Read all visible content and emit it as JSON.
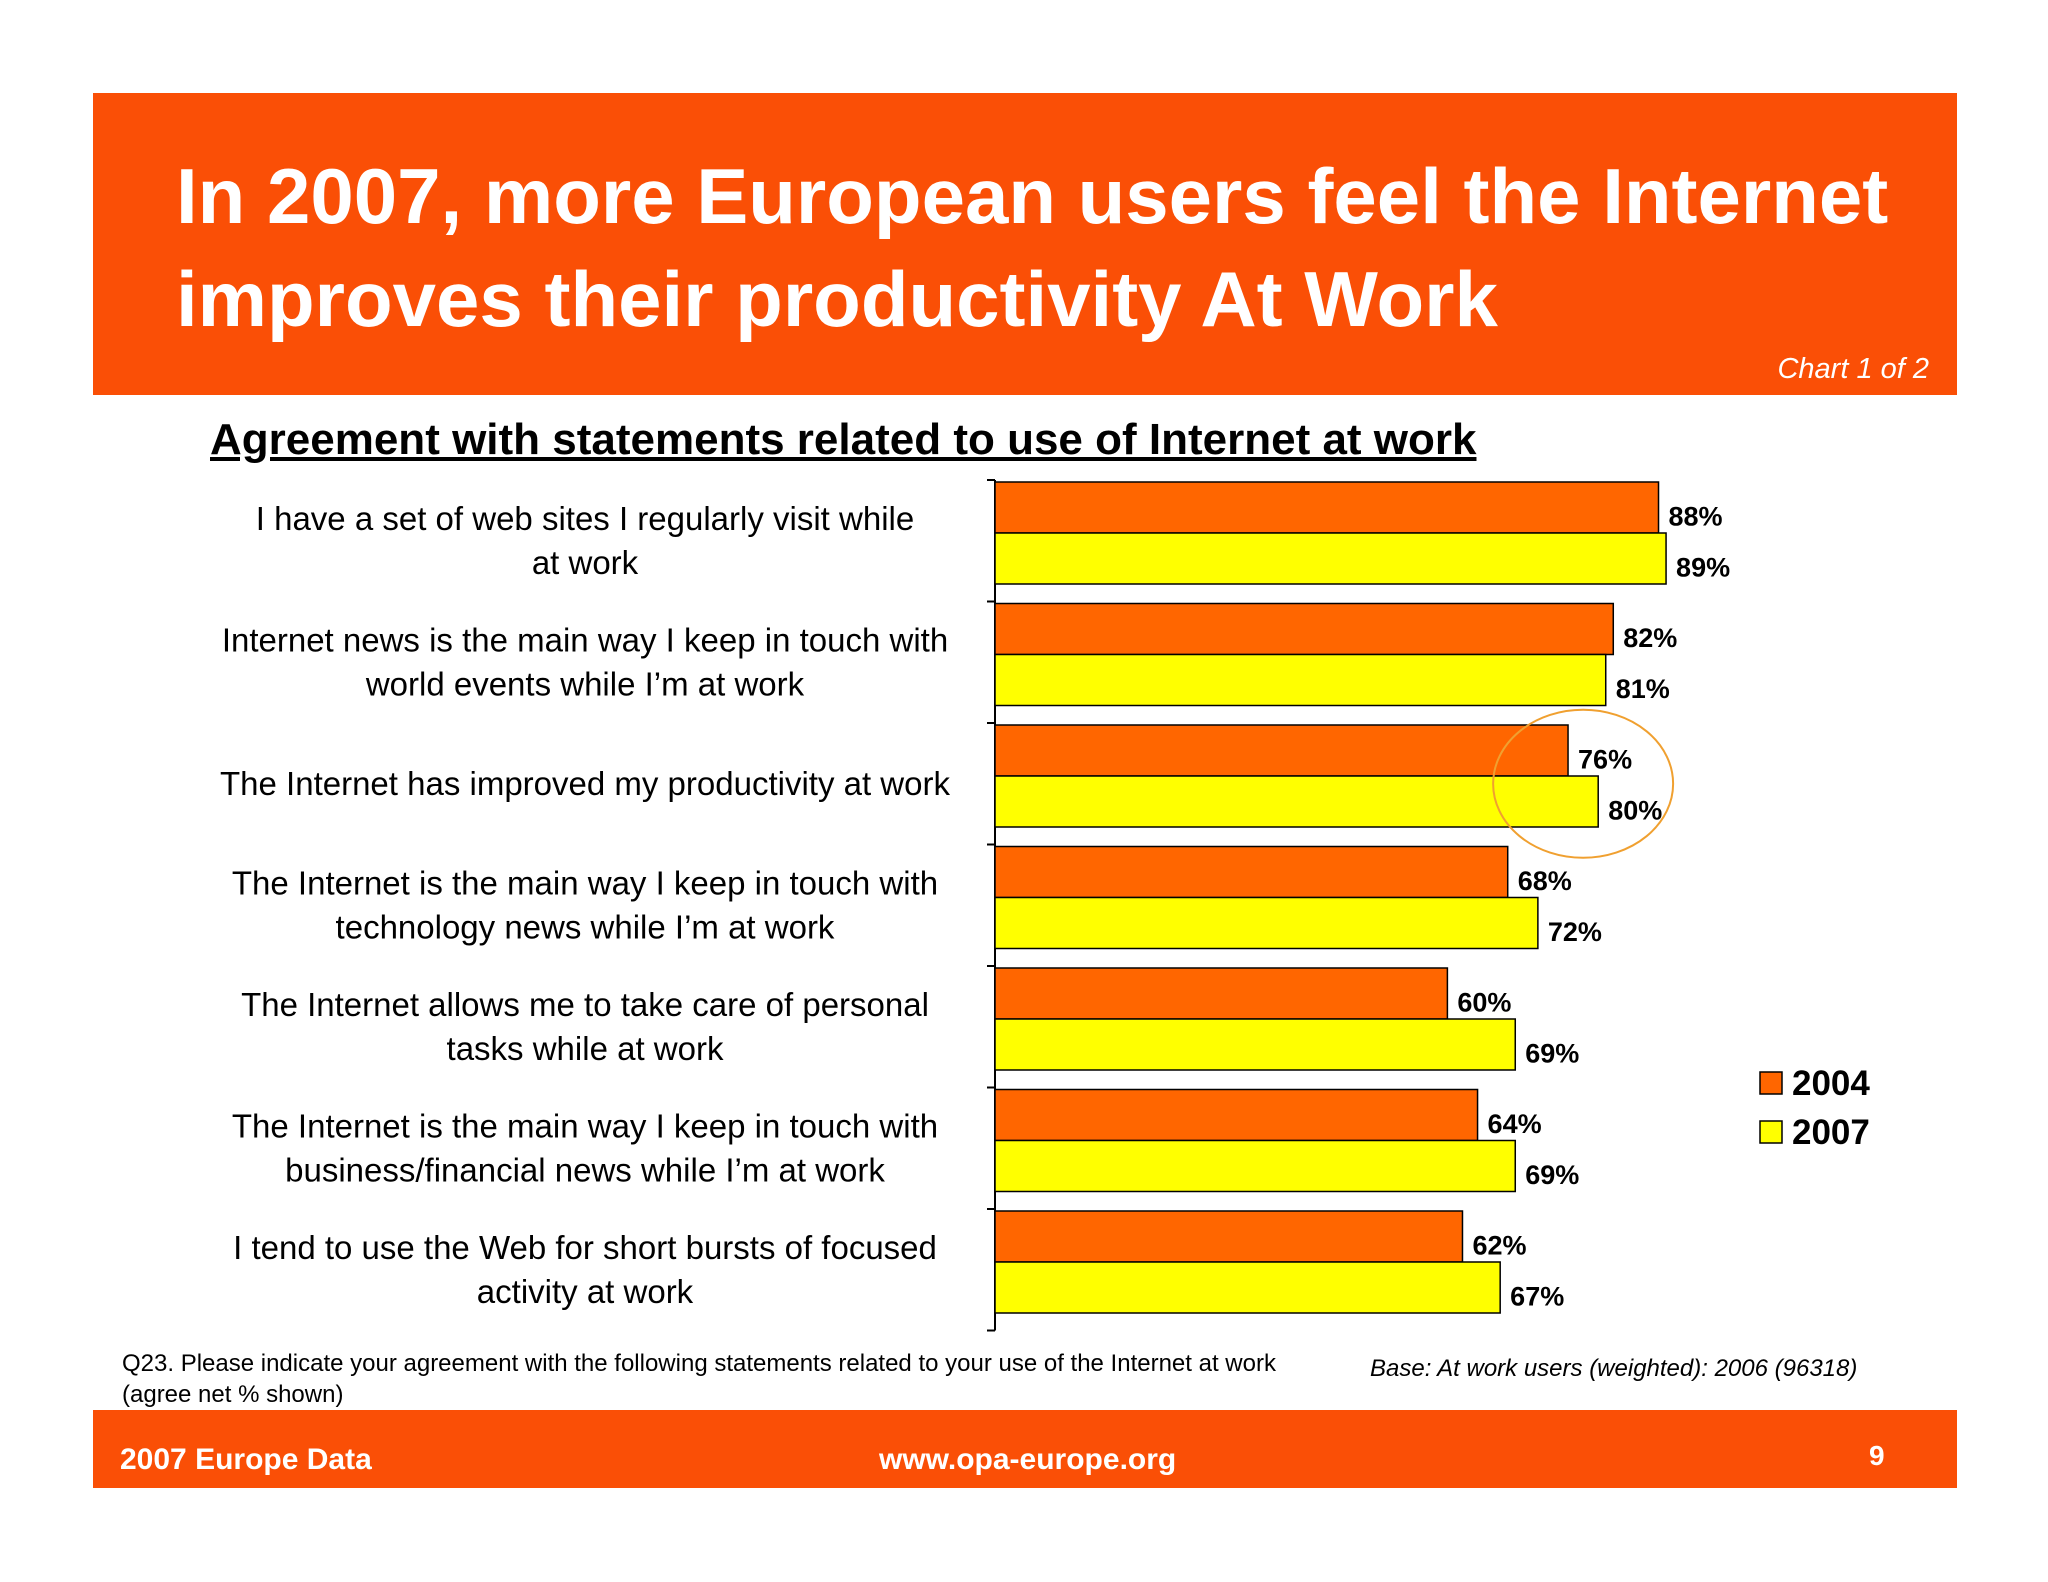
{
  "header": {
    "title": "In 2007, more European users feel the Internet improves their productivity At Work",
    "chart_counter": "Chart 1 of 2"
  },
  "chart_data": {
    "type": "bar",
    "orientation": "horizontal",
    "title": "Agreement with statements related to use of Internet at work",
    "categories": [
      "I have a set of web sites I regularly visit while at work",
      "Internet news is the main way I keep in touch with world events while I’m at work",
      "The Internet has improved my productivity at work",
      "The Internet is the main way I keep in touch with technology news while I’m at work",
      "The Internet allows me to take care of personal tasks while at work",
      "The Internet is the main way I keep in touch with business/financial news while I’m at work",
      "I tend to use the Web for short bursts of focused activity at work"
    ],
    "series": [
      {
        "name": "2004",
        "values": [
          88,
          82,
          76,
          68,
          60,
          64,
          62
        ],
        "color": "#ff6600"
      },
      {
        "name": "2007",
        "values": [
          89,
          81,
          80,
          72,
          69,
          69,
          67
        ],
        "color": "#ffff00"
      }
    ],
    "value_suffix": "%",
    "xlim": [
      0,
      100
    ],
    "legend_position": "right",
    "grid": false,
    "highlight_category": "The Internet has improved my productivity at work",
    "highlight_color": "#f0a030"
  },
  "footnotes": {
    "question": "Q23. Please indicate your agreement with the following statements related to your use of the Internet at work (agree net % shown)",
    "base": "Base: At work users (weighted): 2006 (96318)"
  },
  "footer": {
    "left": "2007 Europe Data",
    "center": "www.opa-europe.org",
    "page_number": "9"
  },
  "colors": {
    "brand_orange": "#fa4f06"
  }
}
